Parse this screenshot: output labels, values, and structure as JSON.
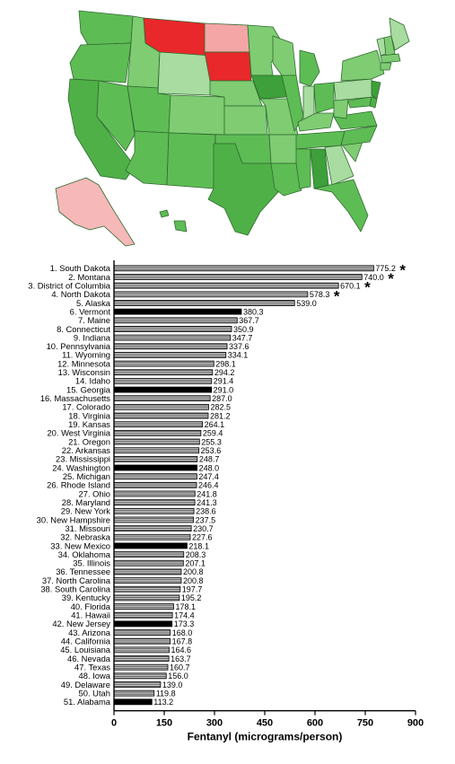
{
  "map": {
    "states": [
      {
        "id": "SD",
        "color": "#e8282b"
      },
      {
        "id": "MT",
        "color": "#e8282b"
      },
      {
        "id": "ND",
        "color": "#f4a6a6"
      },
      {
        "id": "AK",
        "color": "#f6b8b8"
      }
    ],
    "palette": {
      "high": "#e8282b",
      "pink": "#f4a6a6",
      "light_green": "#a8dca0",
      "mid_green": "#7fcc73",
      "green": "#5ebc55",
      "dark_green": "#3da03a"
    }
  },
  "chart_data": {
    "type": "bar",
    "orientation": "horizontal",
    "categories": [
      "1. South Dakota",
      "2. Montana",
      "3. District of Columbia",
      "4. North Dakota",
      "5. Alaska",
      "6. Vermont",
      "7. Maine",
      "8. Connecticut",
      "9. Indiana",
      "10. Pennsylvania",
      "11. Wyoming",
      "12. Minnesota",
      "13. Wisconsin",
      "14. Idaho",
      "15. Georgia",
      "16. Massachusetts",
      "17. Colorado",
      "18. Virginia",
      "19. Kansas",
      "20. West Virginia",
      "21. Oregon",
      "22. Arkansas",
      "23. Mississippi",
      "24. Washington",
      "25. Michigan",
      "26. Rhode Island",
      "27. Ohio",
      "28. Maryland",
      "29. New York",
      "30. New Hampshire",
      "31. Missouri",
      "32. Nebraska",
      "33. New Mexico",
      "34. Oklahoma",
      "35. Illinois",
      "36. Tennessee",
      "37. North Carolina",
      "38. South Carolina",
      "39. Kentucky",
      "40. Florida",
      "41. Hawaii",
      "42. New Jersey",
      "43. Arizona",
      "44. California",
      "45. Louisiana",
      "46. Nevada",
      "47. Texas",
      "48. Iowa",
      "49. Delaware",
      "50. Utah",
      "51. Alabama"
    ],
    "values": [
      775.2,
      740.0,
      670.1,
      578.3,
      539.0,
      380.3,
      367.7,
      350.9,
      347.7,
      337.6,
      334.1,
      298.1,
      294.2,
      291.4,
      291.0,
      287.0,
      282.5,
      281.2,
      264.1,
      259.4,
      255.3,
      253.6,
      248.7,
      248.0,
      247.4,
      246.4,
      241.8,
      241.3,
      238.6,
      237.5,
      230.7,
      227.6,
      218.1,
      208.3,
      207.1,
      200.8,
      200.8,
      197.7,
      195.2,
      178.1,
      174.4,
      173.3,
      168.0,
      167.8,
      164.6,
      163.7,
      160.7,
      156.0,
      139.0,
      119.8,
      113.2
    ],
    "value_labels": [
      "775.2",
      "740.0",
      "670.1",
      "578.3",
      "539.0",
      "380.3",
      "367.7",
      "350.9",
      "347.7",
      "337.6",
      "334.1",
      "298.1",
      "294.2",
      "291.4",
      "291.0",
      "287.0",
      "282.5",
      "281.2",
      "264.1",
      "259.4",
      "255.3",
      "253.6",
      "248.7",
      "248.0",
      "247.4",
      "246.4",
      "241.8",
      "241.3",
      "238.6",
      "237.5",
      "230.7",
      "227.6",
      "218.1",
      "208.3",
      "207.1",
      "200.8",
      "200.8",
      "197.7",
      "195.2",
      "178.1",
      "174.4",
      "173.3",
      "168.0",
      "167.8",
      "164.6",
      "163.7",
      "160.7",
      "156.0",
      "139.0",
      "119.8",
      "113.2"
    ],
    "highlighted": [
      "6. Vermont",
      "15. Georgia",
      "24. Washington",
      "33. New Mexico",
      "42. New Jersey",
      "51. Alabama"
    ],
    "significance_marker": "*",
    "significant": [
      "1. South Dakota",
      "2. Montana",
      "3. District of Columbia",
      "4. North Dakota"
    ],
    "xlabel": "Fentanyl (micrograms/person)",
    "xlim": [
      0,
      900
    ],
    "xticks": [
      0,
      150,
      300,
      450,
      600,
      750,
      900
    ],
    "xtick_labels": [
      "0",
      "150",
      "300",
      "450",
      "600",
      "750",
      "900"
    ],
    "bar_fill": "#a9a9a9",
    "highlight_fill": "#000000",
    "bar_hatch": "horizontal-lines",
    "grid": false
  }
}
